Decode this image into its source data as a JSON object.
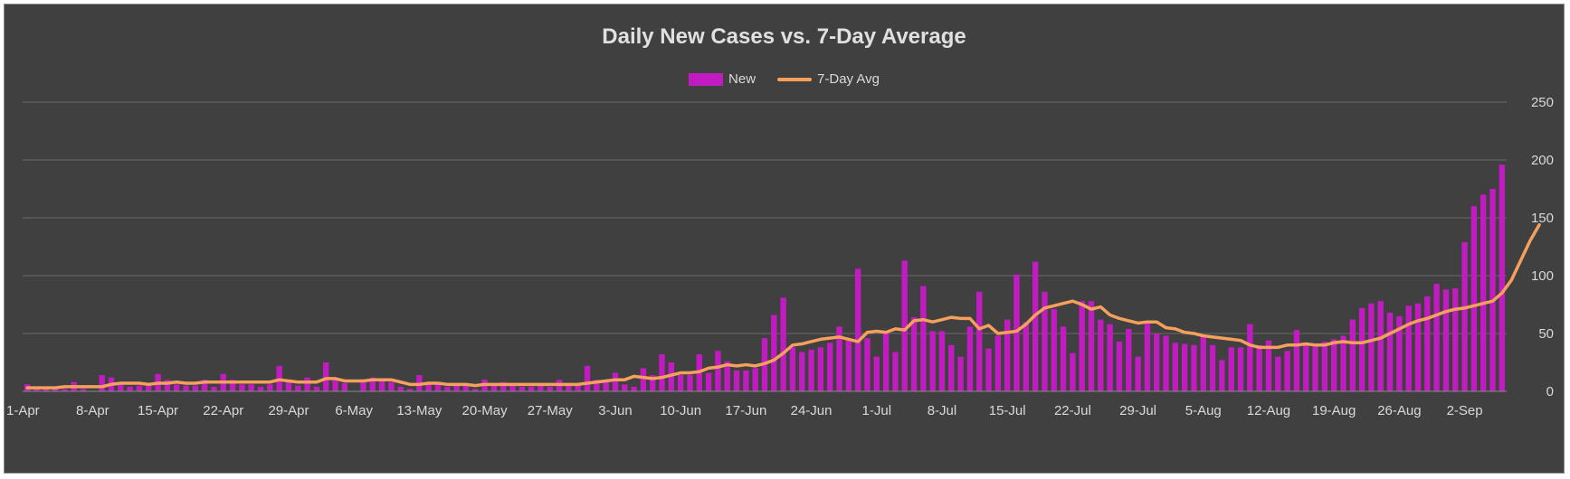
{
  "colors": {
    "new": "#c21bc2",
    "avg": "#f5a05c",
    "background": "#404040",
    "grid": "#6a6a6a",
    "text": "#d9d9d9"
  },
  "chart_data": {
    "type": "bar+line",
    "title": "Daily New Cases vs. 7-Day Average",
    "legend_position": "top",
    "grid": true,
    "y_axis_side": "right",
    "ylim": [
      0,
      250
    ],
    "yticks": [
      "0",
      "50",
      "100",
      "150",
      "200",
      "250"
    ],
    "x_tick_labels": [
      "1-Apr",
      "8-Apr",
      "15-Apr",
      "22-Apr",
      "29-Apr",
      "6-May",
      "13-May",
      "20-May",
      "27-May",
      "3-Jun",
      "10-Jun",
      "17-Jun",
      "24-Jun",
      "1-Jul",
      "8-Jul",
      "15-Jul",
      "22-Jul",
      "29-Jul",
      "5-Aug",
      "12-Aug",
      "19-Aug",
      "26-Aug",
      "2-Sep"
    ],
    "start_date": "1-Apr",
    "series": [
      {
        "name": "New",
        "kind": "bar",
        "values": [
          6,
          2,
          2,
          2,
          2,
          8,
          2,
          0,
          14,
          12,
          6,
          4,
          5,
          6,
          15,
          10,
          6,
          5,
          5,
          10,
          4,
          15,
          10,
          6,
          6,
          4,
          6,
          22,
          8,
          5,
          12,
          4,
          25,
          10,
          7,
          0,
          8,
          12,
          10,
          8,
          4,
          2,
          14,
          8,
          6,
          4,
          6,
          5,
          2,
          10,
          6,
          8,
          5,
          4,
          4,
          6,
          4,
          10,
          5,
          6,
          22,
          10,
          8,
          16,
          6,
          4,
          20,
          14,
          32,
          25,
          14,
          14,
          32,
          16,
          35,
          26,
          18,
          18,
          20,
          46,
          66,
          81,
          38,
          34,
          36,
          38,
          42,
          56,
          44,
          106,
          46,
          30,
          52,
          34,
          113,
          64,
          91,
          52,
          52,
          40,
          30,
          56,
          86,
          37,
          48,
          62,
          101,
          60,
          112,
          86,
          71,
          56,
          33,
          78,
          78,
          62,
          58,
          43,
          54,
          30,
          60,
          50,
          48,
          42,
          41,
          40,
          48,
          40,
          27,
          38,
          38,
          58,
          40,
          44,
          30,
          35,
          53,
          40,
          40,
          43,
          45,
          48,
          62,
          72,
          76,
          78,
          68,
          65,
          74,
          76,
          82,
          93,
          88,
          89,
          129,
          160,
          170,
          175,
          196
        ]
      },
      {
        "name": "7-Day Avg",
        "kind": "line",
        "values": [
          3,
          3,
          3,
          3,
          4,
          4,
          4,
          4,
          4,
          6,
          7,
          7,
          7,
          6,
          7,
          7,
          8,
          7,
          7,
          8,
          8,
          8,
          8,
          8,
          8,
          8,
          8,
          10,
          9,
          8,
          8,
          8,
          11,
          11,
          9,
          9,
          9,
          10,
          10,
          10,
          8,
          6,
          6,
          7,
          7,
          6,
          6,
          6,
          5,
          6,
          6,
          6,
          6,
          6,
          6,
          6,
          6,
          6,
          6,
          6,
          7,
          8,
          9,
          10,
          10,
          13,
          12,
          11,
          12,
          14,
          16,
          16,
          17,
          20,
          21,
          23,
          22,
          23,
          22,
          24,
          27,
          33,
          40,
          41,
          43,
          45,
          46,
          47,
          45,
          43,
          51,
          52,
          51,
          54,
          53,
          61,
          62,
          60,
          62,
          64,
          63,
          63,
          54,
          57,
          50,
          51,
          52,
          58,
          66,
          72,
          74,
          76,
          78,
          75,
          71,
          73,
          66,
          63,
          61,
          59,
          60,
          60,
          55,
          54,
          51,
          50,
          48,
          47,
          46,
          45,
          44,
          40,
          38,
          38,
          38,
          40,
          40,
          41,
          40,
          40,
          42,
          43,
          42,
          42,
          44,
          46,
          50,
          54,
          58,
          61,
          63,
          66,
          69,
          71,
          72,
          74,
          76,
          78,
          85,
          96,
          113,
          130,
          144
        ]
      }
    ]
  }
}
